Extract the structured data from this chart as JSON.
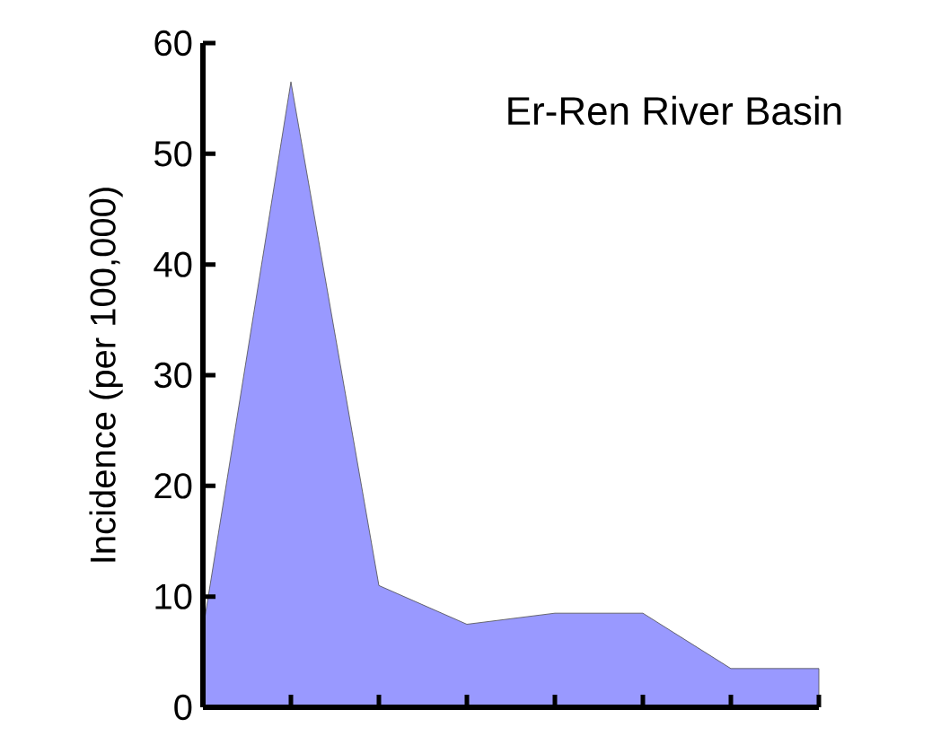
{
  "chart_data": {
    "type": "area",
    "title": "Er-Ren River Basin",
    "ylabel": "Incidence (per 100,000)",
    "categories": [
      null,
      null,
      null,
      null,
      null,
      null,
      null,
      null
    ],
    "values": [
      7,
      56.5,
      11,
      7.5,
      8.5,
      8.5,
      3.5,
      3.5
    ],
    "color": "#9999ff",
    "ylim": [
      0,
      60
    ],
    "yticks": [
      0,
      10,
      20,
      30,
      40,
      50,
      60
    ],
    "tick_labels": "y",
    "grid": false
  }
}
